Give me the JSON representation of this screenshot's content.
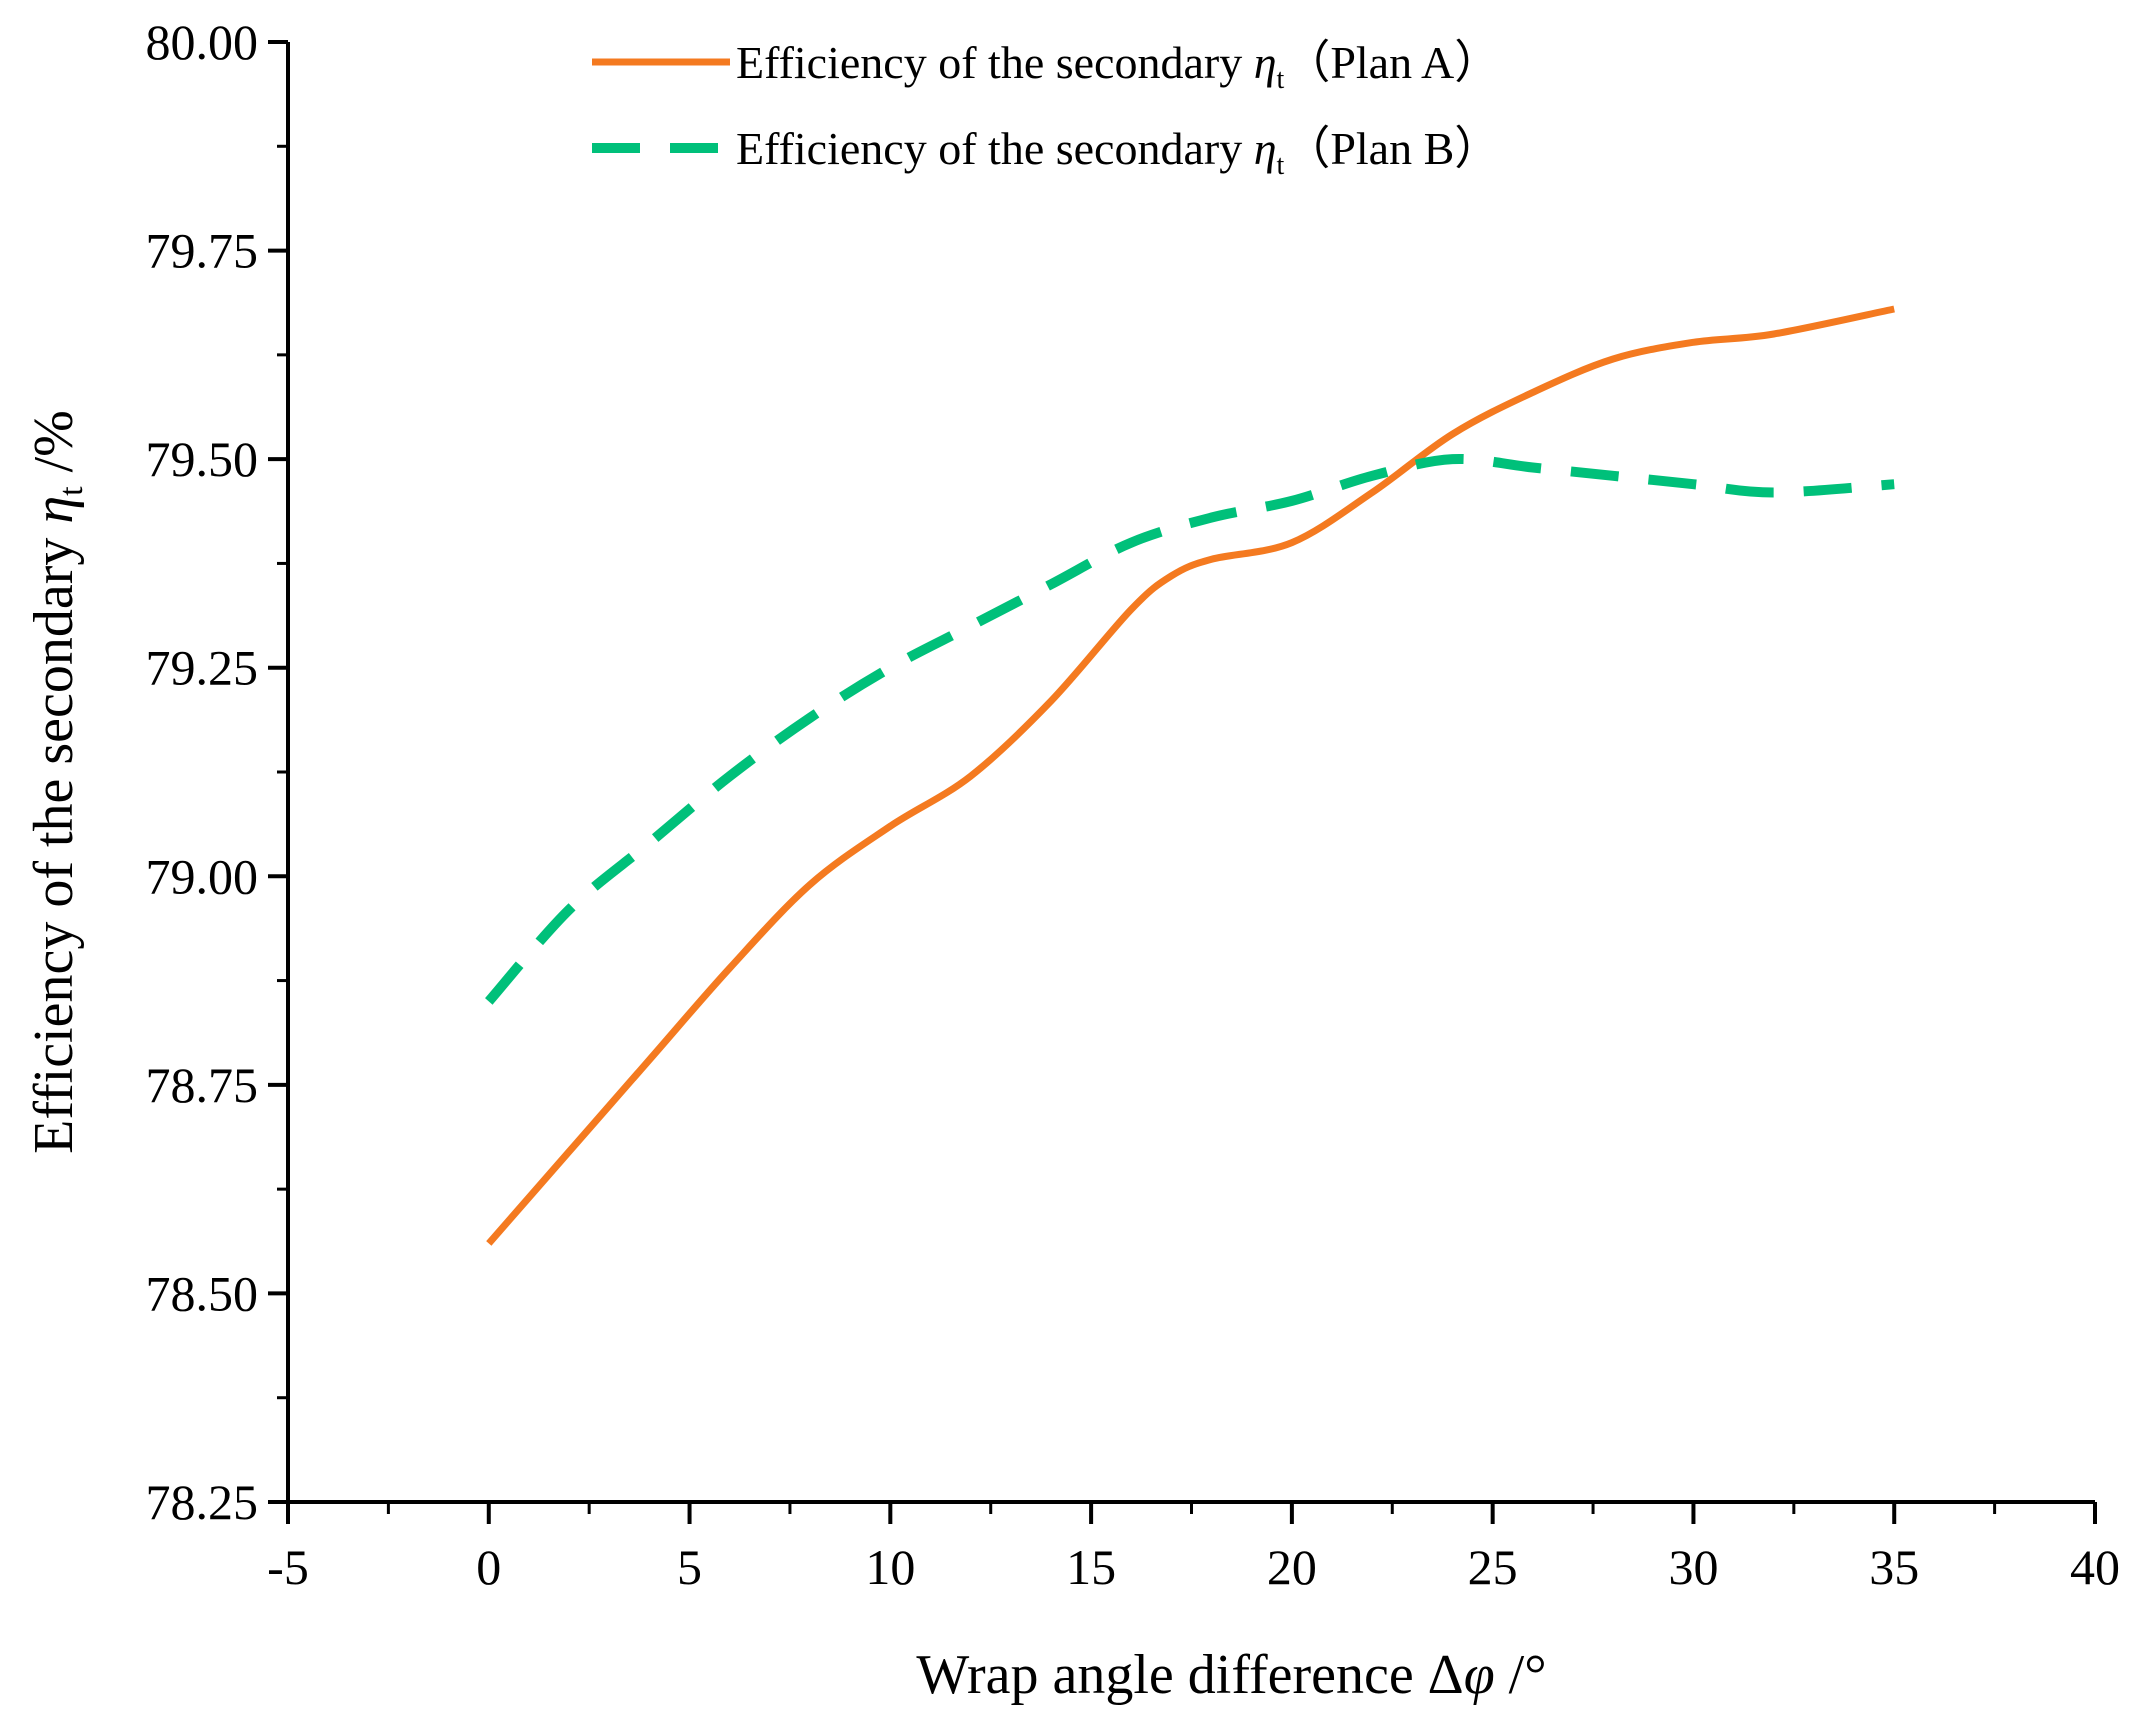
{
  "chart_data": {
    "type": "line",
    "title": "",
    "xlabel": "Wrap angle difference Δφ /°",
    "ylabel": "Efficiency of the secondary η_t /%",
    "xlim": [
      -5,
      40
    ],
    "ylim": [
      78.25,
      80.0
    ],
    "x_ticks": [
      "-5",
      "0",
      "5",
      "10",
      "15",
      "20",
      "25",
      "30",
      "35",
      "40"
    ],
    "y_ticks": [
      "78.25",
      "78.50",
      "78.75",
      "79.00",
      "79.25",
      "79.50",
      "79.75",
      "80.00"
    ],
    "x_tick_values": [
      -5,
      0,
      5,
      10,
      15,
      20,
      25,
      30,
      35,
      40
    ],
    "y_tick_values": [
      78.25,
      78.5,
      78.75,
      79.0,
      79.25,
      79.5,
      79.75,
      80.0
    ],
    "grid": false,
    "legend_position": "top-center",
    "series": [
      {
        "name": "Efficiency of the secondary ηt（Plan A）",
        "legend_main": "Efficiency of the secondary ",
        "legend_symbol": "η",
        "legend_sub": "t",
        "legend_suffix": "（Plan A）",
        "color": "#F47A20",
        "style": "solid",
        "x": [
          0,
          2,
          4,
          6,
          8,
          10,
          12,
          14,
          16,
          17,
          18,
          20,
          22,
          24,
          26,
          28,
          30,
          32,
          35
        ],
        "y": [
          78.56,
          78.67,
          78.78,
          78.89,
          78.99,
          79.06,
          79.12,
          79.21,
          79.32,
          79.36,
          79.38,
          79.4,
          79.46,
          79.53,
          79.58,
          79.62,
          79.64,
          79.65,
          79.68
        ]
      },
      {
        "name": "Efficiency of the secondary ηt（Plan B）",
        "legend_main": "Efficiency of the secondary ",
        "legend_symbol": "η",
        "legend_sub": "t",
        "legend_suffix": "（Plan B）",
        "color": "#00C07A",
        "style": "dashed",
        "x": [
          0,
          2,
          4,
          6,
          8,
          10,
          12,
          14,
          16,
          18,
          20,
          22,
          24,
          26,
          28,
          30,
          32,
          35
        ],
        "y": [
          78.85,
          78.96,
          79.04,
          79.12,
          79.19,
          79.25,
          79.3,
          79.35,
          79.4,
          79.43,
          79.45,
          79.48,
          79.5,
          79.49,
          79.48,
          79.47,
          79.46,
          79.47
        ]
      }
    ]
  },
  "axis_titles": {
    "x_main": "Wrap angle difference Δ",
    "x_symbol": "φ",
    "x_unit": " /°",
    "y_main": "Efficiency of the secondary ",
    "y_symbol": "η",
    "y_sub": "t",
    "y_unit": " /%"
  }
}
